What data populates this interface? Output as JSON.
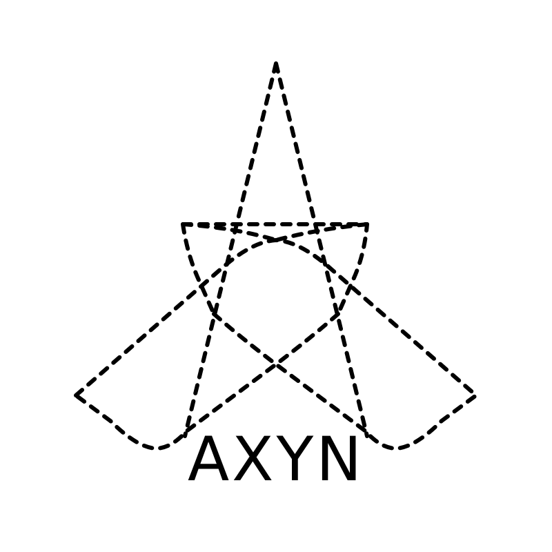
{
  "logo": {
    "name": "AXYN",
    "icon": "dashed-star-mark-icon",
    "stroke_color": "#000000",
    "background_color": "#ffffff"
  }
}
